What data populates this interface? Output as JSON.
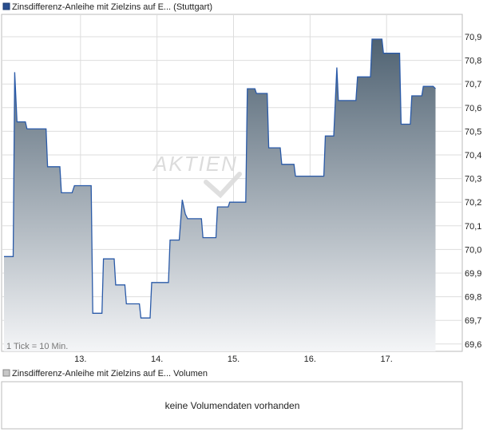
{
  "legend_price": "Zinsdifferenz-Anleihe mit Zielzins auf E...  (Stuttgart)",
  "legend_volume": "Zinsdifferenz-Anleihe mit Zielzins auf E...  Volumen",
  "tick_note": "1 Tick = 10 Min.",
  "watermark": "AKTIEN",
  "volume_message": "keine Volumendaten vorhanden",
  "colors": {
    "line": "#2a5aa8",
    "fill_top": "#4f6272",
    "fill_bottom": "#f4f5f7",
    "grid": "#dddddd",
    "frame": "#bbbbbb"
  },
  "chart_data": {
    "type": "area",
    "x_ticks": [
      {
        "label": "13.",
        "x": 1.0
      },
      {
        "label": "14.",
        "x": 2.0
      },
      {
        "label": "15.",
        "x": 3.0
      },
      {
        "label": "16.",
        "x": 4.0
      },
      {
        "label": "17.",
        "x": 5.0
      }
    ],
    "y_ticks": [
      "70,9",
      "70,8",
      "70,7",
      "70,6",
      "70,5",
      "70,4",
      "70,3",
      "70,2",
      "70,1",
      "70,0",
      "69,9",
      "69,8",
      "69,7",
      "69,6"
    ],
    "ylim": [
      69.6,
      70.97
    ],
    "xlim": [
      0.0,
      6.0
    ],
    "series": [
      {
        "points": [
          [
            0.0,
            69.97
          ],
          [
            0.12,
            69.97
          ],
          [
            0.14,
            70.75
          ],
          [
            0.17,
            70.54
          ],
          [
            0.28,
            70.54
          ],
          [
            0.3,
            70.51
          ],
          [
            0.55,
            70.51
          ],
          [
            0.57,
            70.35
          ],
          [
            0.73,
            70.35
          ],
          [
            0.75,
            70.24
          ],
          [
            0.89,
            70.24
          ],
          [
            0.92,
            70.27
          ],
          [
            1.14,
            70.27
          ],
          [
            1.16,
            69.73
          ],
          [
            1.28,
            69.73
          ],
          [
            1.3,
            69.96
          ],
          [
            1.44,
            69.96
          ],
          [
            1.46,
            69.85
          ],
          [
            1.58,
            69.85
          ],
          [
            1.6,
            69.77
          ],
          [
            1.77,
            69.77
          ],
          [
            1.79,
            69.71
          ],
          [
            1.91,
            69.71
          ],
          [
            1.93,
            69.86
          ],
          [
            2.15,
            69.86
          ],
          [
            2.17,
            70.04
          ],
          [
            2.29,
            70.04
          ],
          [
            2.33,
            70.21
          ],
          [
            2.37,
            70.15
          ],
          [
            2.4,
            70.13
          ],
          [
            2.58,
            70.13
          ],
          [
            2.6,
            70.05
          ],
          [
            2.77,
            70.05
          ],
          [
            2.79,
            70.18
          ],
          [
            2.93,
            70.18
          ],
          [
            2.95,
            70.2
          ],
          [
            3.16,
            70.2
          ],
          [
            3.18,
            70.68
          ],
          [
            3.28,
            70.68
          ],
          [
            3.3,
            70.66
          ],
          [
            3.44,
            70.66
          ],
          [
            3.46,
            70.43
          ],
          [
            3.61,
            70.43
          ],
          [
            3.63,
            70.36
          ],
          [
            3.79,
            70.36
          ],
          [
            3.81,
            70.31
          ],
          [
            4.18,
            70.31
          ],
          [
            4.2,
            70.48
          ],
          [
            4.31,
            70.48
          ],
          [
            4.35,
            70.77
          ],
          [
            4.37,
            70.63
          ],
          [
            4.6,
            70.63
          ],
          [
            4.62,
            70.73
          ],
          [
            4.79,
            70.73
          ],
          [
            4.81,
            70.89
          ],
          [
            4.94,
            70.89
          ],
          [
            4.96,
            70.83
          ],
          [
            5.17,
            70.83
          ],
          [
            5.19,
            70.53
          ],
          [
            5.31,
            70.53
          ],
          [
            5.33,
            70.65
          ],
          [
            5.46,
            70.65
          ],
          [
            5.48,
            70.69
          ],
          [
            5.61,
            70.69
          ],
          [
            5.64,
            70.68
          ]
        ]
      }
    ]
  }
}
